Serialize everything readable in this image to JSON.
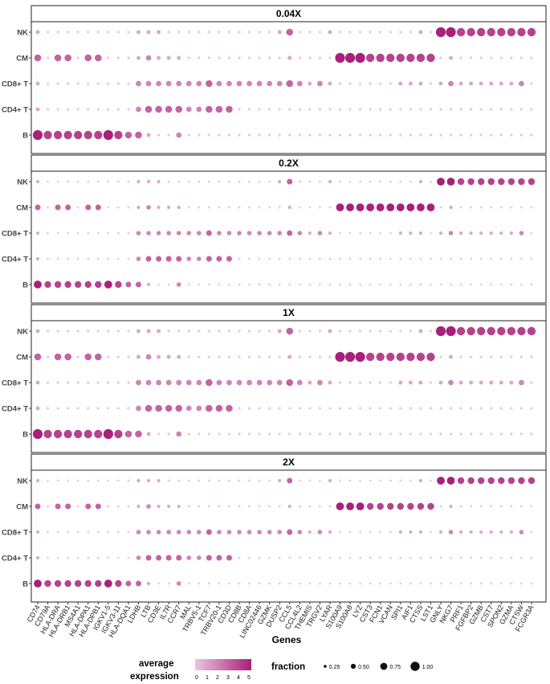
{
  "chart_data": {
    "type": "dotplot",
    "xlabel": "Genes",
    "genes": [
      "CD74",
      "CD79A",
      "HLA-DRA",
      "HLA-DRB1",
      "MS4A1",
      "HLA-DPA1",
      "HLA-DPB1",
      "IGKV1-5",
      "IGKV3-11",
      "HLA-DQA1",
      "LDHB",
      "LTB",
      "CD3E",
      "IL7R",
      "CCR7",
      "MAL",
      "TRBV5-1",
      "TCF7",
      "TRBV20-1",
      "CD3D",
      "CD8B",
      "CD8A",
      "LINC02446",
      "GZMK",
      "DUSP2",
      "CCL5",
      "CCL4L2",
      "THEMIS",
      "TRGV2",
      "LYAR",
      "S100A9",
      "S100A8",
      "LYZ",
      "CST3",
      "FCN1",
      "VCAN",
      "SPI1",
      "AIF1",
      "CTSS",
      "LST1",
      "GNLY",
      "NKG7",
      "PRF1",
      "FGFBP2",
      "GZMB",
      "CST7",
      "SPON2",
      "GZMA",
      "CTSW",
      "FCGR3A"
    ],
    "cell_types": [
      "NK",
      "CM",
      "CD8+ T",
      "CD4+ T",
      "B"
    ],
    "panels": [
      "0.04X",
      "0.2X",
      "1X",
      "2X"
    ],
    "color_legend": {
      "title": "average expression",
      "ticks": [
        "0",
        "1",
        "2",
        "3",
        "4",
        "5"
      ],
      "low_color": "#f3e6ef",
      "high_color": "#a8207a"
    },
    "size_legend": {
      "title": "fraction",
      "ticks": [
        "0.25",
        "0.50",
        "0.75",
        "1.00"
      ]
    },
    "base_levels": {
      "B": [
        5,
        4,
        4,
        4,
        4,
        4,
        4,
        5,
        4,
        3,
        3,
        1,
        0,
        0,
        2,
        0,
        0,
        0,
        0,
        0,
        0,
        0,
        0,
        0,
        0,
        0,
        0,
        0,
        0,
        0,
        0,
        0,
        0,
        0,
        0,
        0,
        0,
        0,
        0,
        0,
        0,
        0,
        0,
        0,
        0,
        0,
        0,
        0,
        0,
        0
      ],
      "CD4+ T": [
        1,
        0,
        0,
        0,
        0,
        0,
        0,
        0,
        0,
        0,
        2,
        3,
        3,
        3,
        3,
        2,
        2,
        3,
        3,
        3,
        0,
        0,
        0,
        0,
        0,
        0,
        0,
        0,
        0,
        0,
        0,
        0,
        0,
        0,
        0,
        0,
        0,
        0,
        0,
        0,
        0,
        0,
        0,
        0,
        0,
        0,
        0,
        0,
        0,
        0
      ],
      "CD8+ T": [
        1,
        0,
        0,
        0,
        0,
        0,
        0,
        0,
        0,
        0,
        2,
        2,
        2,
        2,
        2,
        2,
        2,
        3,
        2,
        2,
        2,
        2,
        2,
        2,
        2,
        3,
        2,
        1,
        2,
        1,
        0,
        0,
        0,
        0,
        0,
        0,
        1,
        1,
        1,
        0,
        1,
        2,
        1,
        1,
        1,
        1,
        1,
        1,
        2,
        0
      ],
      "CM": [
        3,
        0,
        3,
        3,
        0,
        3,
        3,
        0,
        0,
        0,
        1,
        2,
        1,
        1,
        1,
        0,
        0,
        0,
        0,
        0,
        0,
        0,
        0,
        0,
        0,
        1,
        0,
        0,
        0,
        0,
        5,
        5,
        5,
        4,
        4,
        4,
        4,
        4,
        4,
        4,
        0,
        1,
        0,
        0,
        0,
        0,
        0,
        0,
        0,
        0
      ],
      "NK": [
        1,
        0,
        0,
        0,
        0,
        0,
        0,
        0,
        0,
        0,
        1,
        1,
        1,
        0,
        0,
        0,
        0,
        0,
        0,
        0,
        0,
        0,
        0,
        0,
        1,
        3,
        0,
        0,
        0,
        1,
        0,
        0,
        0,
        0,
        0,
        0,
        0,
        0,
        1,
        0,
        5,
        5,
        4,
        4,
        4,
        4,
        4,
        4,
        4,
        4
      ]
    }
  }
}
